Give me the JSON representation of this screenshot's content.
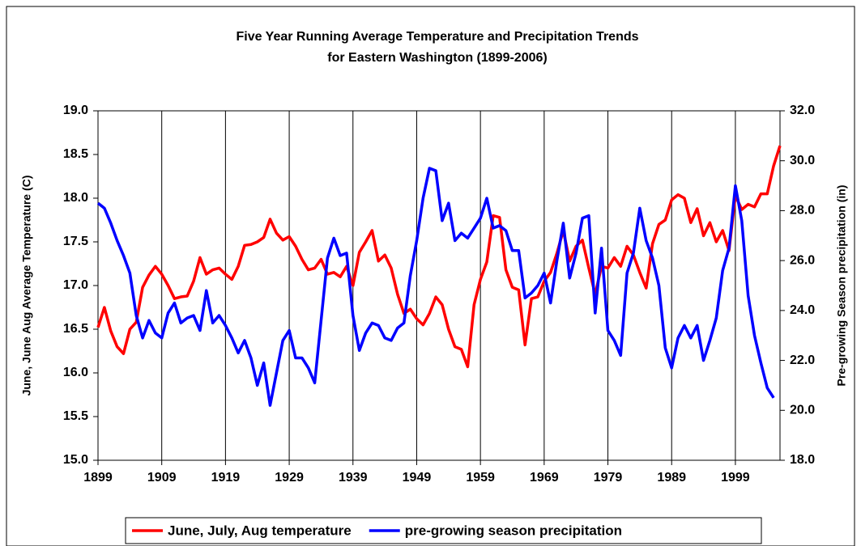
{
  "chart_data": {
    "type": "line",
    "title": [
      "Five Year Running Average Temperature and Precipitation Trends",
      "for Eastern Washington (1899-2006)"
    ],
    "y_label": "June, June Aug Average Temperature (C)",
    "y2_label": "Pre-growing Season precipitation (in)",
    "x": [
      1899,
      1900,
      1901,
      1902,
      1903,
      1904,
      1905,
      1906,
      1907,
      1908,
      1909,
      1910,
      1911,
      1912,
      1913,
      1914,
      1915,
      1916,
      1917,
      1918,
      1919,
      1920,
      1921,
      1922,
      1923,
      1924,
      1925,
      1926,
      1927,
      1928,
      1929,
      1930,
      1931,
      1932,
      1933,
      1934,
      1935,
      1936,
      1937,
      1938,
      1939,
      1940,
      1941,
      1942,
      1943,
      1944,
      1945,
      1946,
      1947,
      1948,
      1949,
      1950,
      1951,
      1952,
      1953,
      1954,
      1955,
      1956,
      1957,
      1958,
      1959,
      1960,
      1961,
      1962,
      1963,
      1964,
      1965,
      1966,
      1967,
      1968,
      1969,
      1970,
      1971,
      1972,
      1973,
      1974,
      1975,
      1976,
      1977,
      1978,
      1979,
      1980,
      1981,
      1982,
      1983,
      1984,
      1985,
      1986,
      1987,
      1988,
      1989,
      1990,
      1991,
      1992,
      1993,
      1994,
      1995,
      1996,
      1997,
      1998,
      1999,
      2000,
      2001,
      2002,
      2003,
      2004,
      2005,
      2006
    ],
    "xlim": [
      1899,
      2006
    ],
    "xticks": [
      1899,
      1909,
      1919,
      1929,
      1939,
      1949,
      1959,
      1969,
      1979,
      1989,
      1999
    ],
    "ylim": [
      15,
      19
    ],
    "yticks": [
      {
        "value": 15,
        "label": "15.0"
      },
      15.5,
      {
        "value": 16,
        "label": "16.0"
      },
      16.5,
      {
        "value": 17,
        "label": "17.0"
      },
      17.5,
      {
        "value": 18,
        "label": "18.0"
      },
      18.5,
      {
        "value": 19,
        "label": "19.0"
      }
    ],
    "y2lim": [
      18,
      32
    ],
    "y2ticks": [
      {
        "value": 18,
        "label": "18.0"
      },
      {
        "value": 20,
        "label": "20.0"
      },
      {
        "value": 22,
        "label": "22.0"
      },
      {
        "value": 24,
        "label": "24.0"
      },
      {
        "value": 26,
        "label": "26.0"
      },
      {
        "value": 28,
        "label": "28.0"
      },
      {
        "value": 30,
        "label": "30.0"
      },
      {
        "value": 32,
        "label": "32.0"
      }
    ],
    "grid": true,
    "legend": "bottom",
    "series": [
      {
        "name": "June, July, Aug temperature",
        "color": "#ff0000",
        "values": [
          16.52,
          16.75,
          16.48,
          16.3,
          16.22,
          16.5,
          16.58,
          16.98,
          17.12,
          17.22,
          17.13,
          17.0,
          16.85,
          16.87,
          16.88,
          17.05,
          17.32,
          17.13,
          17.18,
          17.2,
          17.13,
          17.07,
          17.22,
          17.46,
          17.47,
          17.5,
          17.55,
          17.76,
          17.6,
          17.52,
          17.56,
          17.45,
          17.3,
          17.18,
          17.2,
          17.3,
          17.13,
          17.15,
          17.1,
          17.22,
          17.0,
          17.38,
          17.5,
          17.63,
          17.28,
          17.35,
          17.2,
          16.9,
          16.68,
          16.73,
          16.62,
          16.55,
          16.68,
          16.87,
          16.78,
          16.5,
          16.3,
          16.27,
          16.07,
          16.78,
          17.07,
          17.27,
          17.8,
          17.78,
          17.18,
          16.98,
          16.95,
          16.32,
          16.85,
          16.87,
          17.05,
          17.15,
          17.37,
          17.63,
          17.28,
          17.45,
          17.52,
          17.2,
          16.9,
          17.22,
          17.2,
          17.32,
          17.22,
          17.45,
          17.35,
          17.15,
          16.97,
          17.48,
          17.7,
          17.75,
          17.98,
          18.04,
          18.0,
          17.72,
          17.88,
          17.57,
          17.72,
          17.5,
          17.63,
          17.4,
          18.03,
          17.87,
          17.93,
          17.9,
          18.05,
          18.05,
          18.37,
          18.6
        ]
      },
      {
        "name": "pre-growing season precipitation",
        "color": "#0000ff",
        "axis": "y2",
        "values": [
          28.3,
          28.1,
          27.5,
          26.8,
          26.2,
          25.5,
          23.8,
          22.9,
          23.6,
          23.1,
          22.9,
          23.9,
          24.3,
          23.5,
          23.7,
          23.8,
          23.2,
          24.8,
          23.5,
          23.8,
          23.4,
          22.9,
          22.3,
          22.8,
          22.1,
          21.0,
          21.9,
          20.2,
          21.5,
          22.8,
          23.2,
          22.1,
          22.1,
          21.7,
          21.1,
          23.6,
          26.1,
          26.9,
          26.2,
          26.3,
          23.8,
          22.4,
          23.1,
          23.5,
          23.4,
          22.9,
          22.8,
          23.3,
          23.5,
          25.4,
          26.8,
          28.5,
          29.7,
          29.6,
          27.6,
          28.3,
          26.8,
          27.1,
          26.9,
          27.3,
          27.7,
          28.5,
          27.3,
          27.4,
          27.2,
          26.4,
          26.4,
          24.5,
          24.7,
          25.0,
          25.5,
          24.3,
          26.0,
          27.5,
          25.3,
          26.3,
          27.7,
          27.8,
          23.9,
          26.5,
          23.2,
          22.8,
          22.2,
          25.5,
          26.3,
          28.1,
          26.8,
          26.1,
          25.0,
          22.5,
          21.7,
          22.9,
          23.4,
          22.9,
          23.4,
          22.0,
          22.8,
          23.7,
          25.6,
          26.5,
          29.0,
          27.6,
          24.6,
          23.0,
          21.9,
          20.9,
          20.5,
          null
        ]
      }
    ]
  }
}
